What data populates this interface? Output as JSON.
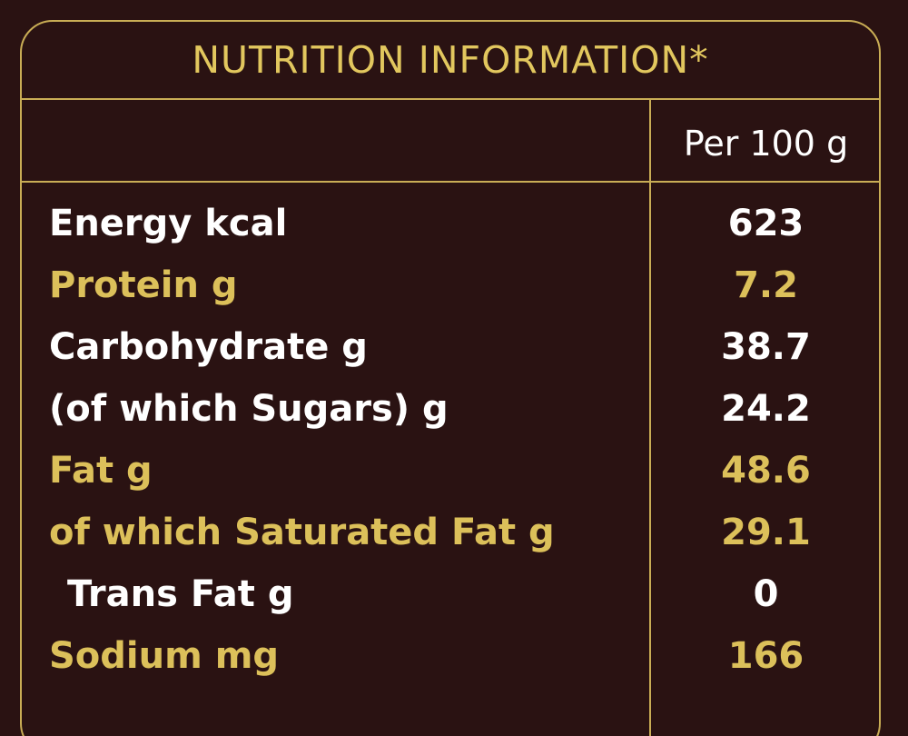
{
  "title": "NUTRITION INFORMATION*",
  "column_header": "Per 100 g",
  "rows": [
    {
      "label": "Energy kcal",
      "value": "623"
    },
    {
      "label": "Protein g",
      "value": "7.2"
    },
    {
      "label": "Carbohydrate g",
      "value": "38.7"
    },
    {
      "label": "(of which Sugars) g",
      "value": "24.2"
    },
    {
      "label": "Fat g",
      "value": "48.6"
    },
    {
      "label": "of which Saturated Fat g",
      "value": "29.1"
    },
    {
      "label": "Trans Fat g",
      "value": "0"
    },
    {
      "label": "Sodium mg",
      "value": "166"
    }
  ],
  "colors": {
    "background": "#2a1212",
    "border": "#c9ad55",
    "gold_text": "#dcc05a",
    "white_text": "#ffffff"
  }
}
